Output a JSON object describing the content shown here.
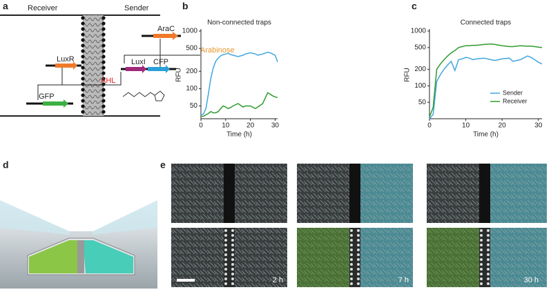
{
  "panel_letters": {
    "a": "a",
    "b": "b",
    "c": "c",
    "d": "d",
    "e": "e"
  },
  "diagram": {
    "receiver": "Receiver",
    "sender": "Sender",
    "arac": "AraC",
    "arabinose": "Arabinose",
    "luxr": "LuxR",
    "luxi": "LuxI",
    "cfp": "CFP",
    "ahl": "AHL",
    "gfp": "GFP"
  },
  "micrographs": {
    "times": [
      "2 h",
      "7 h",
      "30 h"
    ]
  },
  "chart_data": [
    {
      "type": "line",
      "title": "Non-connected traps",
      "ylabel": "RFU",
      "xlabel": "Time (h)",
      "log_y": true,
      "x": [
        0,
        1,
        2,
        3,
        4,
        5,
        6,
        7,
        8,
        9,
        10,
        11,
        12,
        13,
        15,
        17,
        18,
        20,
        22,
        23,
        25,
        27,
        28,
        29,
        30,
        31
      ],
      "series": [
        {
          "name": "Sender",
          "color": "#3fa6e0",
          "values": [
            35,
            36,
            45,
            80,
            150,
            230,
            300,
            340,
            370,
            390,
            400,
            410,
            390,
            380,
            360,
            380,
            400,
            420,
            400,
            380,
            400,
            430,
            420,
            400,
            380,
            290
          ]
        },
        {
          "name": "Receiver",
          "color": "#2e9a2e",
          "values": [
            33,
            33,
            35,
            37,
            40,
            38,
            38,
            40,
            45,
            50,
            48,
            45,
            47,
            50,
            55,
            48,
            50,
            50,
            45,
            48,
            55,
            85,
            80,
            75,
            72,
            70
          ]
        }
      ],
      "xlim": [
        0,
        31
      ],
      "ylim": [
        30,
        1000
      ],
      "xticks": [
        0,
        10,
        20,
        30
      ],
      "yticks": [
        50,
        100,
        200,
        500,
        1000
      ]
    },
    {
      "type": "line",
      "title": "Connected traps",
      "ylabel": "RFU",
      "xlabel": "Time (h)",
      "log_y": true,
      "legend": "right",
      "x": [
        0,
        1,
        2,
        3,
        4,
        5,
        6,
        7,
        8,
        9,
        10,
        11,
        12,
        13,
        15,
        17,
        18,
        20,
        22,
        23,
        25,
        27,
        28,
        29,
        30,
        31
      ],
      "series": [
        {
          "name": "Sender",
          "color": "#3fa6e0",
          "values": [
            25,
            30,
            120,
            160,
            200,
            240,
            280,
            190,
            300,
            310,
            330,
            320,
            300,
            310,
            320,
            300,
            290,
            310,
            320,
            280,
            300,
            350,
            330,
            300,
            270,
            250
          ]
        },
        {
          "name": "Receiver",
          "color": "#2e9a2e",
          "values": [
            27,
            40,
            200,
            250,
            300,
            350,
            400,
            440,
            500,
            520,
            540,
            540,
            550,
            550,
            570,
            580,
            570,
            540,
            520,
            520,
            540,
            530,
            530,
            520,
            510,
            500
          ]
        }
      ],
      "xlim": [
        0,
        31
      ],
      "ylim": [
        25,
        1000
      ],
      "xticks": [
        0,
        10,
        20,
        30
      ],
      "yticks": [
        50,
        100,
        200,
        500,
        1000
      ]
    }
  ]
}
